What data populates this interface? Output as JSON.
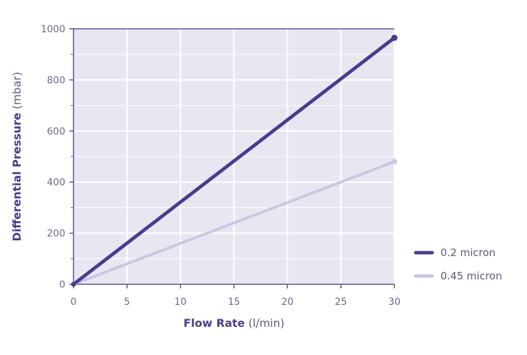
{
  "chart_data": {
    "type": "line",
    "x_axis": {
      "label": "Flow Rate",
      "unit": "(l/min)",
      "range": [
        0,
        30
      ],
      "ticks": [
        "0",
        "5",
        "10",
        "15",
        "20",
        "25",
        "30"
      ]
    },
    "y_axis": {
      "label": "Differential Pressure",
      "unit": "(mbar)",
      "range": [
        0,
        1000
      ],
      "ticks": [
        "0",
        "200",
        "400",
        "600",
        "800",
        "1000"
      ]
    },
    "grid": true,
    "legend_position": "right",
    "series": [
      {
        "name": "0.2 micron",
        "color": "#4b3b8f",
        "x": [
          0,
          30
        ],
        "y": [
          0,
          965
        ]
      },
      {
        "name": "0.45 micron",
        "color": "#cbc6e1",
        "x": [
          0,
          30
        ],
        "y": [
          0,
          480
        ]
      }
    ]
  }
}
